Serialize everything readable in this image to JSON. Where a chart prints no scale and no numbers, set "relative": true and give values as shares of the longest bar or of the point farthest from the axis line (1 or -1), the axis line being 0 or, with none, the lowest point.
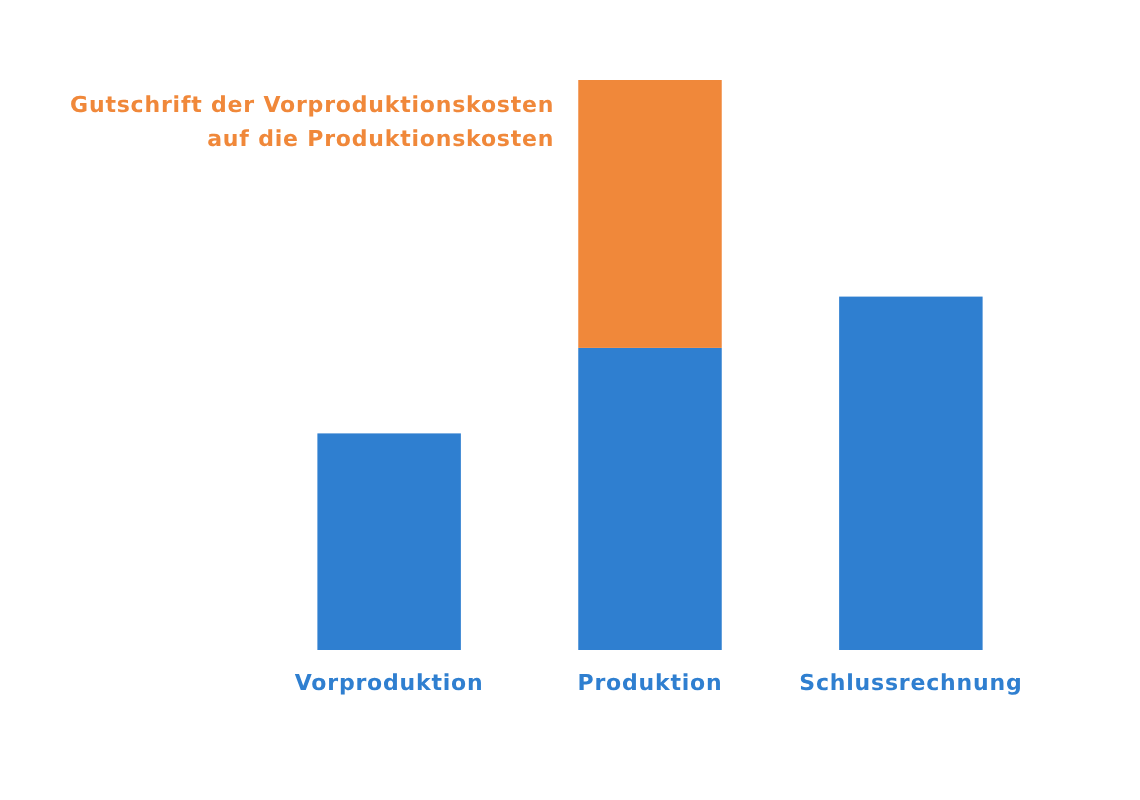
{
  "chart_data": {
    "type": "bar",
    "relative": true,
    "stacked": true,
    "categories": [
      "Vorproduktion",
      "Produktion",
      "Schlussrechnung"
    ],
    "series": [
      {
        "color": "#2f7fd0",
        "values": [
          0.38,
          0.53,
          0.62
        ]
      },
      {
        "name": "Gutschrift der Vorproduktionskosten auf die Produktionskosten",
        "color": "#f0883a",
        "values": [
          null,
          0.47,
          null
        ]
      }
    ]
  }
}
